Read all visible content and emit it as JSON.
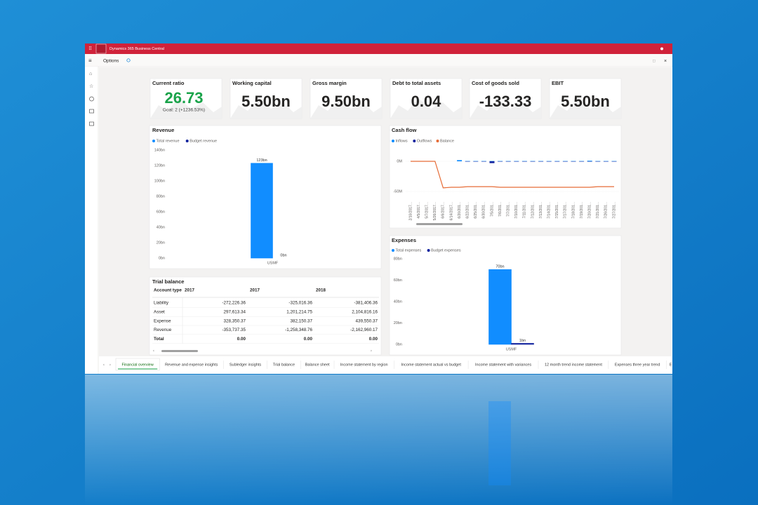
{
  "header": {
    "app_title": "Dynamics 365 Business Central",
    "options": "Options"
  },
  "kpis": [
    {
      "title": "Current ratio",
      "value": "26.73",
      "goal": "Goal: 2 (+1236.53%)",
      "color": "#1aa34a"
    },
    {
      "title": "Working capital",
      "value": "5.50bn"
    },
    {
      "title": "Gross margin",
      "value": "9.50bn"
    },
    {
      "title": "Debt to total assets",
      "value": "0.04"
    },
    {
      "title": "Cost of goods sold",
      "value": "-133.33"
    },
    {
      "title": "EBIT",
      "value": "5.50bn"
    }
  ],
  "revenue": {
    "type": "bar",
    "title": "Revenue",
    "categories": [
      "USMF"
    ],
    "series": [
      {
        "name": "Total revenue",
        "color": "#118dff",
        "values": [
          123
        ],
        "value_labels": [
          "123bn"
        ]
      },
      {
        "name": "Budget revenue",
        "color": "#12239e",
        "values": [
          0
        ],
        "value_labels": [
          "0bn"
        ]
      }
    ],
    "ylim": [
      0,
      140
    ],
    "yticks": [
      {
        "value": 0,
        "label": "0bn"
      },
      {
        "value": 20,
        "label": "20bn"
      },
      {
        "value": 40,
        "label": "40bn"
      },
      {
        "value": 60,
        "label": "60bn"
      },
      {
        "value": 80,
        "label": "80bn"
      },
      {
        "value": 100,
        "label": "100bn"
      },
      {
        "value": 120,
        "label": "120bn"
      },
      {
        "value": 140,
        "label": "140bn"
      }
    ],
    "grid": false
  },
  "cash_flow": {
    "type": "combo",
    "title": "Cash flow",
    "categories": [
      "2/10/2017...",
      "4/5/2017...",
      "5/7/2017...",
      "5/26/2017...",
      "6/6/2017...",
      "6/14/2017...",
      "6/20/201...",
      "6/22/201...",
      "6/25/201...",
      "6/30/201...",
      "7/5/201...",
      "7/6/201...",
      "7/7/201...",
      "7/10/201...",
      "7/11/201...",
      "7/12/201...",
      "7/13/201...",
      "7/14/201...",
      "7/15/201...",
      "7/17/201...",
      "7/18/201...",
      "7/19/201...",
      "7/20/201...",
      "7/21/201...",
      "7/26/201...",
      "7/27/201..."
    ],
    "series": [
      {
        "name": "Inflows",
        "type": "bar",
        "color": "#118dff",
        "values": [
          0,
          0,
          0,
          0,
          0,
          0,
          2,
          0.5,
          0.5,
          0.5,
          0.5,
          0.5,
          0.5,
          0.5,
          0.5,
          0.5,
          0.5,
          0.5,
          0.5,
          0.5,
          0.5,
          0.5,
          1,
          0.5,
          0.5,
          0.5
        ]
      },
      {
        "name": "Outflows",
        "type": "bar",
        "color": "#12239e",
        "values": [
          0,
          0,
          0,
          0,
          0,
          0,
          0,
          -0.5,
          -0.5,
          -0.5,
          -3,
          -0.5,
          -0.5,
          -0.5,
          -0.5,
          -0.5,
          -0.5,
          -0.5,
          -0.5,
          -0.5,
          -0.5,
          -0.5,
          -0.5,
          -0.5,
          -0.5,
          -0.5
        ]
      },
      {
        "name": "Balance",
        "type": "line",
        "color": "#e66c37",
        "values": [
          0,
          0,
          0,
          0,
          -44,
          -43,
          -43,
          -42,
          -42,
          -42,
          -42,
          -43,
          -43,
          -43,
          -43,
          -43,
          -43,
          -43,
          -43,
          -43,
          -43,
          -43,
          -43,
          -42,
          -42,
          -42
        ]
      }
    ],
    "ylim": [
      -65,
      30
    ],
    "yticks": [
      {
        "value": -50,
        "label": "-50M"
      },
      {
        "value": 0,
        "label": "0M"
      }
    ],
    "grid": true
  },
  "expenses": {
    "type": "bar",
    "title": "Expenses",
    "categories": [
      "USMF"
    ],
    "series": [
      {
        "name": "Total expenses",
        "color": "#118dff",
        "values": [
          70
        ],
        "value_labels": [
          "70bn"
        ]
      },
      {
        "name": "Budget expenses",
        "color": "#12239e",
        "values": [
          1
        ],
        "value_labels": [
          "1bn"
        ]
      }
    ],
    "ylim": [
      0,
      80
    ],
    "yticks": [
      {
        "value": 0,
        "label": "0bn"
      },
      {
        "value": 20,
        "label": "20bn"
      },
      {
        "value": 40,
        "label": "40bn"
      },
      {
        "value": 60,
        "label": "60bn"
      },
      {
        "value": 80,
        "label": "80bn"
      }
    ],
    "grid": false
  },
  "trial_balance": {
    "title": "Trial balance",
    "columns": [
      "Account type",
      "2017",
      "2017",
      "2018"
    ],
    "rows": [
      [
        "Liability",
        "-272,226.36",
        "-325,016.36",
        "-381,406.36"
      ],
      [
        "Asset",
        "297,613.34",
        "1,201,214.75",
        "2,104,816.16"
      ],
      [
        "Expense",
        "328,350.37",
        "382,150.37",
        "439,550.37"
      ],
      [
        "Revenue",
        "-353,737.35",
        "-1,258,348.76",
        "-2,162,960.17"
      ],
      [
        "Total",
        "0.00",
        "0.00",
        "0.00"
      ]
    ]
  },
  "tabs": [
    "Financial overview",
    "Revenue and expense insights",
    "Subledger insights",
    "Trial balance",
    "Balance sheet",
    "Income statement by region",
    "Income statement actual vs budget",
    "Income statement with variances",
    "12 month trend income statement",
    "Expenses three year trend",
    "Expe"
  ]
}
